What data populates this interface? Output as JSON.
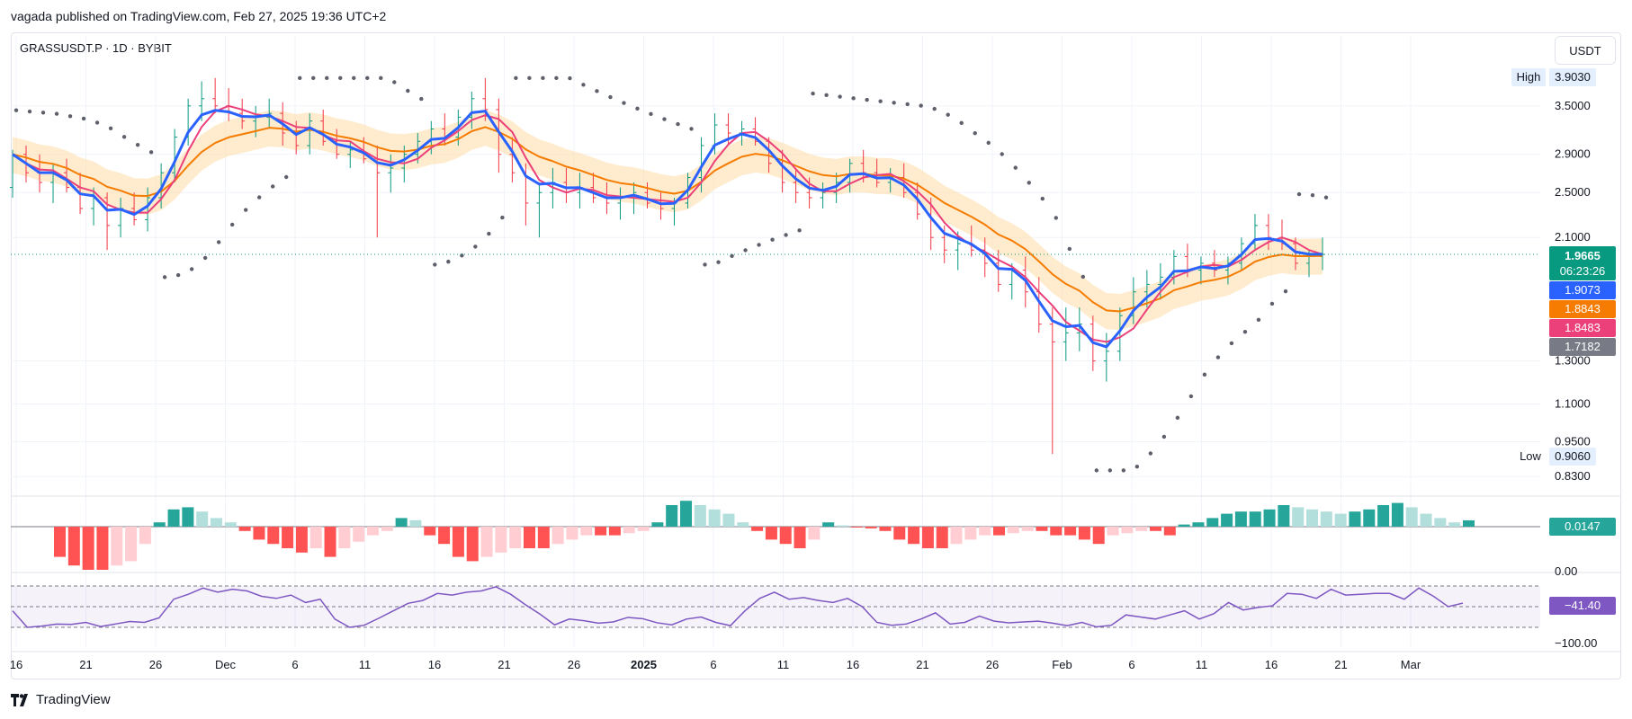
{
  "publication": "vagada published on TradingView.com, Feb 27, 2025 19:36 UTC+2",
  "symbol": "GRASSUSDT.P · 1D · BYBIT",
  "currency_button": "USDT",
  "brand": "TradingView",
  "colors": {
    "up": "#089981",
    "down": "#f23645",
    "blue": "#2962ff",
    "orange": "#f57c00",
    "pink": "#ec407a",
    "band": "#ffe0b2",
    "gray": "#787b86",
    "purple": "#7e57c2",
    "hist_up": "#26a69a",
    "hist_up_weak": "#b2dfdb",
    "hist_down": "#ff5252",
    "hist_down_weak": "#ffcdd2"
  },
  "chart_data": {
    "type": "candlestick",
    "price_scale": {
      "ticks": [
        "3.5000",
        "2.9000",
        "2.5000",
        "2.1000",
        "1.3000",
        "1.1000",
        "0.9500",
        "0.8300"
      ],
      "high": {
        "label": "High",
        "value": "3.9030"
      },
      "low": {
        "label": "Low",
        "value": "0.9060"
      },
      "current": {
        "value": "1.9665",
        "countdown": "06:23:26"
      },
      "tags": [
        {
          "value": "1.9073",
          "color": "#2962ff"
        },
        {
          "value": "1.8843",
          "color": "#f57c00"
        },
        {
          "value": "1.8483",
          "color": "#ec407a"
        },
        {
          "value": "1.7182",
          "color": "#787b86"
        }
      ]
    },
    "time_axis": [
      "16",
      "21",
      "26",
      "Dec",
      "6",
      "11",
      "16",
      "21",
      "26",
      "2025",
      "6",
      "11",
      "16",
      "21",
      "26",
      "Feb",
      "6",
      "11",
      "16",
      "21",
      "Mar"
    ],
    "candles_ohlc": [
      [
        2.55,
        2.95,
        2.45,
        2.9
      ],
      [
        2.9,
        3.0,
        2.6,
        2.7
      ],
      [
        2.7,
        2.9,
        2.5,
        2.6
      ],
      [
        2.6,
        2.8,
        2.4,
        2.7
      ],
      [
        2.7,
        2.85,
        2.5,
        2.55
      ],
      [
        2.55,
        2.7,
        2.3,
        2.35
      ],
      [
        2.35,
        2.55,
        2.2,
        2.45
      ],
      [
        2.45,
        2.5,
        2.0,
        2.2
      ],
      [
        2.2,
        2.45,
        2.1,
        2.35
      ],
      [
        2.35,
        2.5,
        2.2,
        2.25
      ],
      [
        2.25,
        2.55,
        2.15,
        2.45
      ],
      [
        2.45,
        2.8,
        2.35,
        2.7
      ],
      [
        2.7,
        3.2,
        2.6,
        3.1
      ],
      [
        3.1,
        3.6,
        3.0,
        3.5
      ],
      [
        3.5,
        3.85,
        3.3,
        3.6
      ],
      [
        3.6,
        3.9,
        3.4,
        3.5
      ],
      [
        3.5,
        3.75,
        3.3,
        3.4
      ],
      [
        3.4,
        3.6,
        3.2,
        3.3
      ],
      [
        3.3,
        3.5,
        3.1,
        3.35
      ],
      [
        3.35,
        3.6,
        3.2,
        3.4
      ],
      [
        3.4,
        3.55,
        3.0,
        3.15
      ],
      [
        3.15,
        3.3,
        2.9,
        3.0
      ],
      [
        3.0,
        3.4,
        2.9,
        3.3
      ],
      [
        3.3,
        3.45,
        3.0,
        3.05
      ],
      [
        3.05,
        3.2,
        2.85,
        2.9
      ],
      [
        2.9,
        3.05,
        2.75,
        2.95
      ],
      [
        2.95,
        3.1,
        2.8,
        2.85
      ],
      [
        2.85,
        3.0,
        2.1,
        2.7
      ],
      [
        2.7,
        2.9,
        2.5,
        2.75
      ],
      [
        2.75,
        3.0,
        2.6,
        2.9
      ],
      [
        2.9,
        3.15,
        2.8,
        3.05
      ],
      [
        3.05,
        3.3,
        2.9,
        3.2
      ],
      [
        3.2,
        3.4,
        3.0,
        3.1
      ],
      [
        3.1,
        3.45,
        3.0,
        3.35
      ],
      [
        3.35,
        3.7,
        3.2,
        3.6
      ],
      [
        3.6,
        3.9,
        3.3,
        3.45
      ],
      [
        3.45,
        3.6,
        2.7,
        2.9
      ],
      [
        2.9,
        3.1,
        2.6,
        2.7
      ],
      [
        2.7,
        2.8,
        2.2,
        2.4
      ],
      [
        2.4,
        2.6,
        2.1,
        2.5
      ],
      [
        2.5,
        2.75,
        2.35,
        2.6
      ],
      [
        2.6,
        2.75,
        2.4,
        2.5
      ],
      [
        2.5,
        2.7,
        2.35,
        2.55
      ],
      [
        2.55,
        2.7,
        2.4,
        2.45
      ],
      [
        2.45,
        2.6,
        2.3,
        2.4
      ],
      [
        2.4,
        2.55,
        2.25,
        2.45
      ],
      [
        2.45,
        2.6,
        2.3,
        2.5
      ],
      [
        2.5,
        2.6,
        2.35,
        2.4
      ],
      [
        2.4,
        2.5,
        2.25,
        2.35
      ],
      [
        2.35,
        2.45,
        2.2,
        2.4
      ],
      [
        2.4,
        2.7,
        2.35,
        2.65
      ],
      [
        2.65,
        3.1,
        2.5,
        3.0
      ],
      [
        3.0,
        3.4,
        2.9,
        3.25
      ],
      [
        3.25,
        3.4,
        3.0,
        3.15
      ],
      [
        3.15,
        3.3,
        3.0,
        3.2
      ],
      [
        3.2,
        3.35,
        3.0,
        3.05
      ],
      [
        3.05,
        3.1,
        2.7,
        2.8
      ],
      [
        2.8,
        2.95,
        2.5,
        2.6
      ],
      [
        2.6,
        2.75,
        2.4,
        2.5
      ],
      [
        2.5,
        2.65,
        2.35,
        2.45
      ],
      [
        2.45,
        2.6,
        2.35,
        2.5
      ],
      [
        2.5,
        2.7,
        2.4,
        2.6
      ],
      [
        2.6,
        2.85,
        2.5,
        2.8
      ],
      [
        2.8,
        2.95,
        2.6,
        2.7
      ],
      [
        2.7,
        2.85,
        2.55,
        2.6
      ],
      [
        2.6,
        2.75,
        2.5,
        2.65
      ],
      [
        2.65,
        2.8,
        2.45,
        2.5
      ],
      [
        2.5,
        2.6,
        2.25,
        2.3
      ],
      [
        2.3,
        2.45,
        2.0,
        2.1
      ],
      [
        2.1,
        2.2,
        1.9,
        2.0
      ],
      [
        2.0,
        2.15,
        1.85,
        2.05
      ],
      [
        2.05,
        2.2,
        1.95,
        2.0
      ],
      [
        2.0,
        2.1,
        1.8,
        1.9
      ],
      [
        1.9,
        2.0,
        1.7,
        1.75
      ],
      [
        1.75,
        1.9,
        1.65,
        1.85
      ],
      [
        1.85,
        1.95,
        1.6,
        1.7
      ],
      [
        1.7,
        1.8,
        1.45,
        1.5
      ],
      [
        1.5,
        1.6,
        0.906,
        1.4
      ],
      [
        1.4,
        1.6,
        1.3,
        1.45
      ],
      [
        1.45,
        1.6,
        1.35,
        1.5
      ],
      [
        1.5,
        1.55,
        1.25,
        1.3
      ],
      [
        1.3,
        1.45,
        1.2,
        1.35
      ],
      [
        1.35,
        1.6,
        1.3,
        1.55
      ],
      [
        1.55,
        1.8,
        1.5,
        1.7
      ],
      [
        1.7,
        1.85,
        1.6,
        1.75
      ],
      [
        1.75,
        1.9,
        1.65,
        1.8
      ],
      [
        1.8,
        2.0,
        1.75,
        1.95
      ],
      [
        1.95,
        2.05,
        1.8,
        1.85
      ],
      [
        1.85,
        1.95,
        1.75,
        1.9
      ],
      [
        1.9,
        2.0,
        1.8,
        1.85
      ],
      [
        1.85,
        1.95,
        1.75,
        1.9
      ],
      [
        1.9,
        2.1,
        1.85,
        2.05
      ],
      [
        2.05,
        2.3,
        2.0,
        2.2
      ],
      [
        2.2,
        2.3,
        2.0,
        2.1
      ],
      [
        2.1,
        2.25,
        2.0,
        2.05
      ],
      [
        2.05,
        2.1,
        1.85,
        1.9
      ],
      [
        1.9,
        2.0,
        1.8,
        1.95
      ],
      [
        1.95,
        2.1,
        1.85,
        1.9665
      ]
    ],
    "macd_histogram": [
      -0.07,
      -0.09,
      -0.1,
      -0.1,
      -0.09,
      -0.08,
      -0.04,
      0.01,
      0.04,
      0.045,
      0.035,
      0.02,
      0.01,
      -0.01,
      -0.03,
      -0.04,
      -0.05,
      -0.06,
      -0.05,
      -0.07,
      -0.05,
      -0.035,
      -0.02,
      -0.01,
      0.02,
      0.015,
      -0.02,
      -0.04,
      -0.07,
      -0.08,
      -0.07,
      -0.06,
      -0.05,
      -0.05,
      -0.05,
      -0.04,
      -0.03,
      -0.02,
      -0.02,
      -0.02,
      -0.015,
      -0.01,
      0.01,
      0.05,
      0.06,
      0.05,
      0.04,
      0.03,
      0.01,
      -0.01,
      -0.03,
      -0.04,
      -0.05,
      -0.03,
      0.01,
      0.003,
      -0.002,
      -0.004,
      -0.01,
      -0.03,
      -0.04,
      -0.05,
      -0.05,
      -0.04,
      -0.03,
      -0.02,
      -0.02,
      -0.015,
      -0.01,
      -0.01,
      -0.02,
      -0.02,
      -0.03,
      -0.04,
      -0.02,
      -0.015,
      -0.01,
      -0.01,
      -0.02,
      0.005,
      0.01,
      0.02,
      0.03,
      0.035,
      0.035,
      0.04,
      0.05,
      0.045,
      0.04,
      0.035,
      0.03,
      0.035,
      0.04,
      0.05,
      0.055,
      0.045,
      0.03,
      0.02,
      0.01,
      0.0147
    ],
    "macd_label": "0.0147",
    "oscillator": {
      "levels": [
        "0.00",
        "−100.00"
      ],
      "current": "−41.40",
      "values": [
        -60,
        -100,
        -97,
        -92,
        -93,
        -88,
        -98,
        -92,
        -86,
        -88,
        -77,
        -32,
        -20,
        -5,
        -15,
        -8,
        -12,
        -25,
        -30,
        -22,
        -40,
        -32,
        -80,
        -100,
        -95,
        -78,
        -60,
        -42,
        -35,
        -18,
        -22,
        -15,
        -12,
        -2,
        -20,
        -45,
        -68,
        -94,
        -80,
        -84,
        -90,
        -87,
        -76,
        -79,
        -89,
        -94,
        -80,
        -75,
        -88,
        -96,
        -60,
        -30,
        -15,
        -32,
        -28,
        -35,
        -40,
        -30,
        -50,
        -88,
        -95,
        -92,
        -80,
        -65,
        -92,
        -88,
        -73,
        -85,
        -89,
        -87,
        -85,
        -90,
        -96,
        -88,
        -99,
        -95,
        -70,
        -75,
        -80,
        -70,
        -60,
        -80,
        -67,
        -40,
        -58,
        -52,
        -48,
        -18,
        -20,
        -30,
        -8,
        -22,
        -20,
        -18,
        -18,
        -32,
        -5,
        -25,
        -50,
        -41.4
      ]
    }
  }
}
